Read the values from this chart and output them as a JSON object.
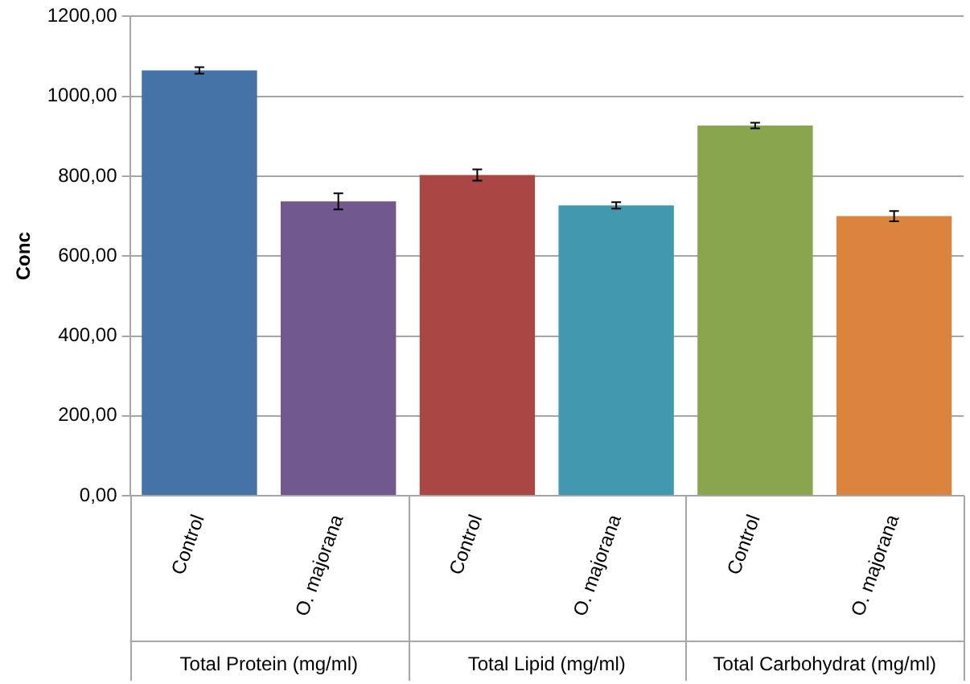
{
  "chart_data": {
    "type": "bar",
    "ylabel": "Conc",
    "categories": [
      "Control",
      "O. majorana",
      "Control",
      "O. majorana",
      "Control",
      "O. majorana"
    ],
    "values": [
      1065,
      737,
      803,
      727,
      927,
      700
    ],
    "errors": [
      8,
      20,
      14,
      8,
      7,
      13
    ],
    "colors": [
      "#4572a7",
      "#71588f",
      "#aa4643",
      "#4198af",
      "#89a54e",
      "#db843d"
    ],
    "ylim": [
      0,
      1200
    ],
    "yticks": [
      {
        "value": 0,
        "label": "0,00"
      },
      {
        "value": 200,
        "label": "200,00"
      },
      {
        "value": 400,
        "label": "400,00"
      },
      {
        "value": 600,
        "label": "600,00"
      },
      {
        "value": 800,
        "label": "800,00"
      },
      {
        "value": 1000,
        "label": "1000,00"
      },
      {
        "value": 1200,
        "label": "1200,00"
      }
    ],
    "annotations": [
      "Total Protein (mg/ml)",
      "Total Lipid (mg/ml)",
      "Total Carbohydrat (mg/ml)"
    ],
    "grid": "y",
    "legend": false
  }
}
